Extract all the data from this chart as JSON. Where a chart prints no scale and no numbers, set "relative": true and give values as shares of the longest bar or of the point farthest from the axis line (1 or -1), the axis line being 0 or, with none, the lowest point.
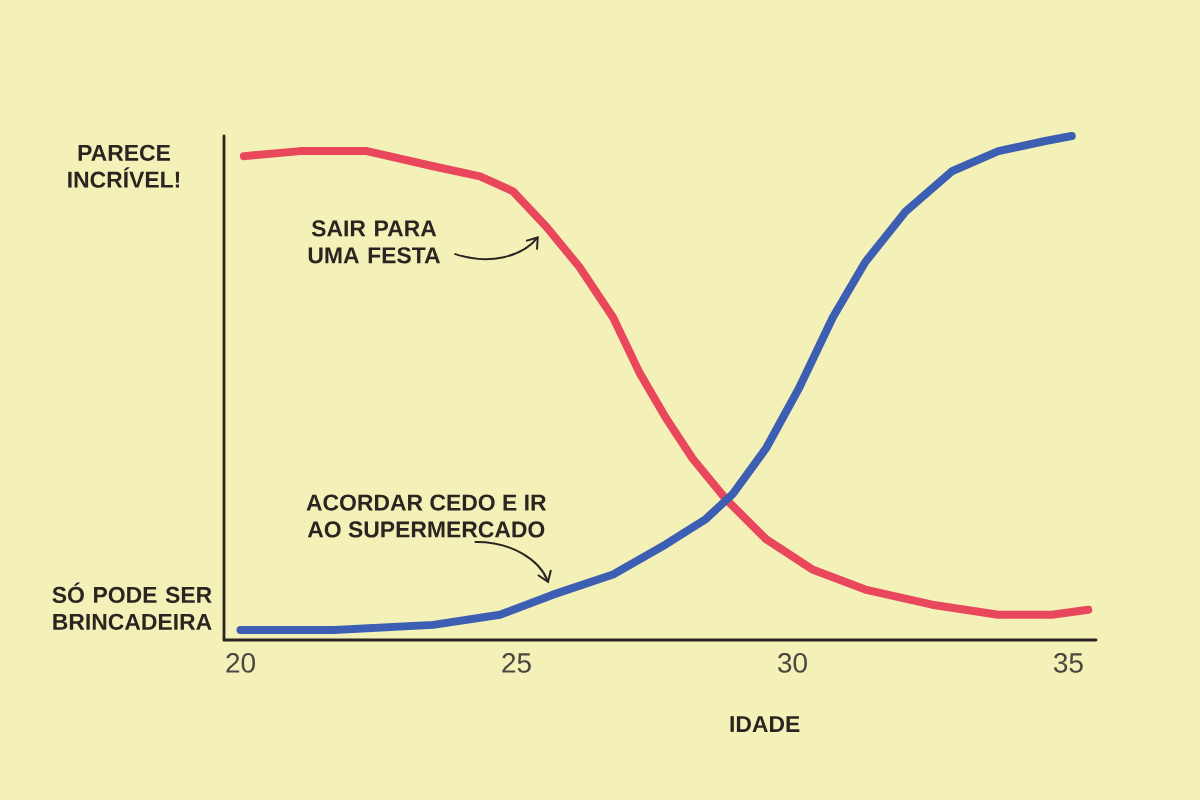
{
  "chart_data": {
    "type": "line",
    "relative": true,
    "xlabel": "IDADE",
    "xlim": [
      19.7,
      35.5
    ],
    "xticks": [
      20,
      25,
      30,
      35
    ],
    "annotations": [
      "PARECE INCRÍVEL!",
      "SÓ PODE SER BRINCADEIRA"
    ],
    "series": [
      {
        "name": "SAIR PARA UMA FESTA",
        "color": "#e8475c",
        "x": [
          20.06,
          21.08,
          22.29,
          23.49,
          24.34,
          24.94,
          25.54,
          26.14,
          26.75,
          27.23,
          27.71,
          28.19,
          28.79,
          29.52,
          30.36,
          31.32,
          32.53,
          33.73,
          34.7,
          35.36
        ],
        "values": [
          0.96,
          0.97,
          0.97,
          0.94,
          0.92,
          0.89,
          0.82,
          0.74,
          0.64,
          0.53,
          0.44,
          0.36,
          0.28,
          0.2,
          0.14,
          0.1,
          0.07,
          0.05,
          0.05,
          0.06
        ]
      },
      {
        "name": "ACORDAR CEDO E IR AO SUPERMERCADO",
        "color": "#3d5fb3",
        "x": [
          20.0,
          21.69,
          23.49,
          24.7,
          25.66,
          26.75,
          27.71,
          28.43,
          28.92,
          29.52,
          30.12,
          30.73,
          31.32,
          32.05,
          32.89,
          33.73,
          34.58,
          35.06
        ],
        "values": [
          0.02,
          0.02,
          0.03,
          0.05,
          0.09,
          0.13,
          0.19,
          0.24,
          0.29,
          0.38,
          0.5,
          0.64,
          0.75,
          0.85,
          0.93,
          0.97,
          0.99,
          1.0
        ]
      }
    ]
  }
}
